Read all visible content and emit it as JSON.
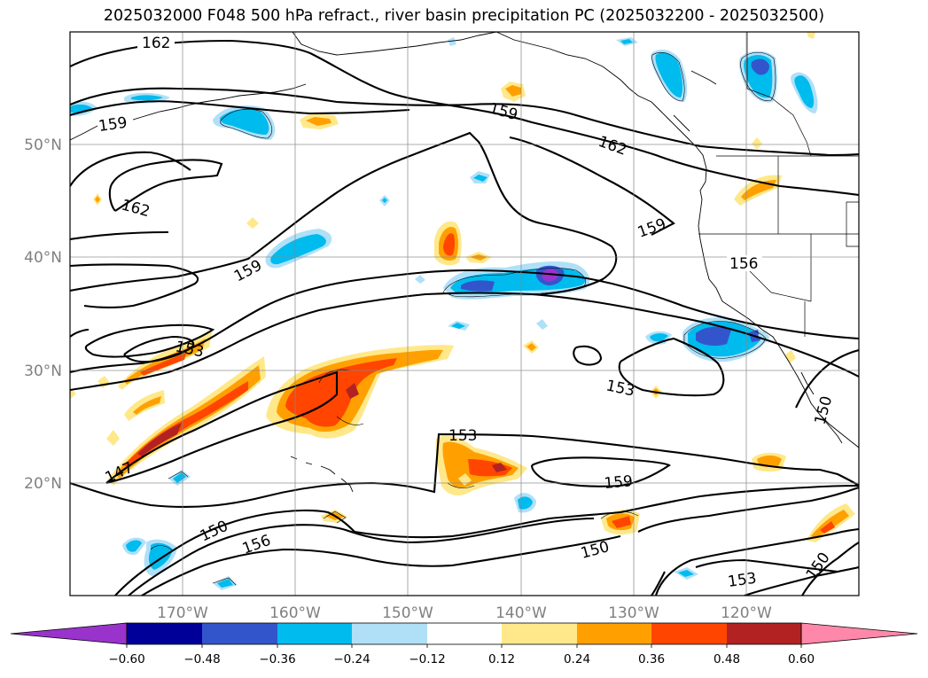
{
  "title": "2025032000 F048 500 hPa refract., river basin precipitation PC (2025032200 - 2025032500)",
  "map": {
    "lat_labels": [
      "50°N",
      "40°N",
      "30°N",
      "20°N"
    ],
    "lon_labels": [
      "170°W",
      "160°W",
      "150°W",
      "140°W",
      "130°W",
      "120°W"
    ],
    "contour_labels": [
      "162",
      "159",
      "162",
      "159",
      "162",
      "159",
      "159",
      "156",
      "153",
      "153",
      "153",
      "147",
      "159",
      "150",
      "156",
      "150",
      "153",
      "150",
      "150"
    ]
  },
  "colorbar": {
    "colors": [
      "#9933cc",
      "#000099",
      "#3355cc",
      "#00bbee",
      "#b0e0f8",
      "#ffffff",
      "#ffe88a",
      "#ffa000",
      "#ff4500",
      "#b22222",
      "#ff88aa"
    ],
    "ticks": [
      "−0.60",
      "−0.48",
      "−0.36",
      "−0.24",
      "−0.12",
      "0.12",
      "0.24",
      "0.36",
      "0.48",
      "0.60"
    ]
  }
}
